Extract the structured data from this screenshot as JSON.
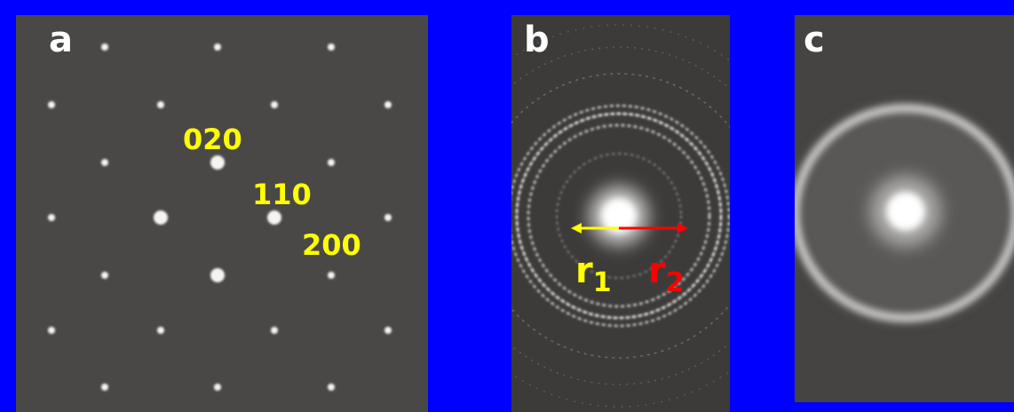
{
  "panels": [
    {
      "label": "a",
      "annotations": [
        "020",
        "110",
        "200"
      ]
    },
    {
      "label": "b",
      "annotations": [
        {
          "symbol": "r",
          "subscript": "1"
        },
        {
          "symbol": "r",
          "subscript": "2"
        }
      ]
    },
    {
      "label": "c"
    }
  ]
}
